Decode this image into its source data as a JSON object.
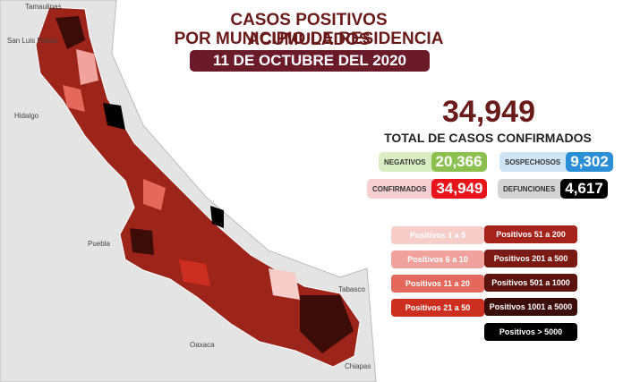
{
  "header": {
    "title_line1": "CASOS POSITIVOS ACUMULADOS",
    "title_line2": "POR MUNICIPIO DE RESIDENCIA",
    "date": "11 DE OCTUBRE DEL 2020"
  },
  "total": {
    "value": "34,949",
    "label": "TOTAL DE CASOS CONFIRMADOS"
  },
  "stats": [
    {
      "label": "NEGATIVOS",
      "value": "20,366",
      "color": "#8cc152",
      "light": "#d9edc3"
    },
    {
      "label": "SOSPECHOSOS",
      "value": "9,302",
      "color": "#2b8fd8",
      "light": "#cfe4f5"
    },
    {
      "label": "CONFIRMADOS",
      "value": "34,949",
      "color": "#e8141b",
      "light": "#f8cfd0"
    },
    {
      "label": "DEFUNCIONES",
      "value": "4,617",
      "color": "#000000",
      "light": "#d4d4d4"
    }
  ],
  "legend": [
    {
      "label": "Positivos 1 a 5",
      "color": "#f7cdca"
    },
    {
      "label": "Positivos 6 a 10",
      "color": "#efa39c"
    },
    {
      "label": "Positivos 11 a 20",
      "color": "#e4685b"
    },
    {
      "label": "Positivos 21 a 50",
      "color": "#cc2e20"
    },
    {
      "label": "Positivos 51 a 200",
      "color": "#a5231a"
    },
    {
      "label": "Positivos 201 a 500",
      "color": "#7b1a12"
    },
    {
      "label": "Positivos 501 a 1000",
      "color": "#5a130d"
    },
    {
      "label": "Positivos 1001 a 5000",
      "color": "#3c0c08"
    },
    {
      "label": "Positivos > 5000",
      "color": "#000000"
    }
  ],
  "map_labels": [
    "Tamaulipas",
    "San Luis Potosí",
    "Hidalgo",
    "Puebla",
    "Oaxaca",
    "Tabasco",
    "Chiapas"
  ]
}
